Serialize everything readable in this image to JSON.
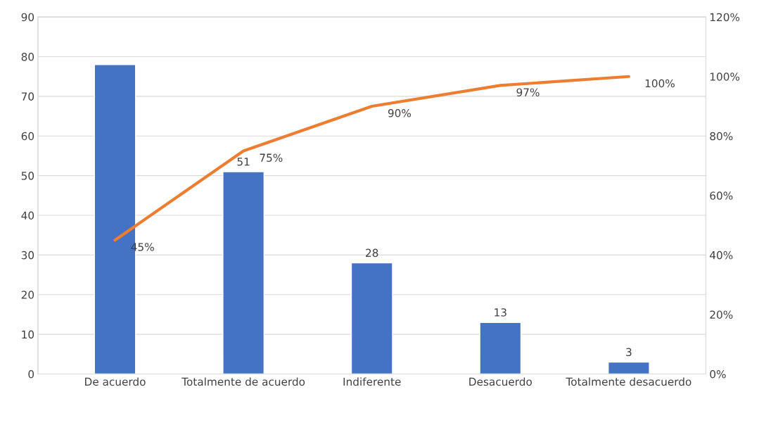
{
  "chart_data": {
    "type": "bar",
    "categories": [
      "De acuerdo",
      "Totalmente de acuerdo",
      "Indiferente",
      "Desacuerdo",
      "Totalmente desacuerdo"
    ],
    "series": [
      {
        "color": "#4472c4",
        "values": [
          78,
          51,
          28,
          13,
          3
        ],
        "value_labels": [
          null,
          "51",
          "28",
          "13",
          "3"
        ]
      },
      {
        "type": "line",
        "axis": "y2",
        "color": "#ed7d31",
        "values": [
          45,
          75,
          90,
          97,
          100
        ],
        "value_labels": [
          "45%",
          "75%",
          "90%",
          "97%",
          "100%"
        ],
        "marker": "none"
      }
    ],
    "ylim": [
      0,
      90
    ],
    "yticks": [
      0,
      10,
      20,
      30,
      40,
      50,
      60,
      70,
      80,
      90
    ],
    "y2lim": [
      0,
      120
    ],
    "y2ticks": [
      {
        "value": 0,
        "label": "0%"
      },
      {
        "value": 20,
        "label": "20%"
      },
      {
        "value": 40,
        "label": "40%"
      },
      {
        "value": 60,
        "label": "60%"
      },
      {
        "value": 80,
        "label": "80%"
      },
      {
        "value": 100,
        "label": "100%"
      },
      {
        "value": 120,
        "label": "120%"
      }
    ],
    "grid": "y",
    "legend": false
  }
}
